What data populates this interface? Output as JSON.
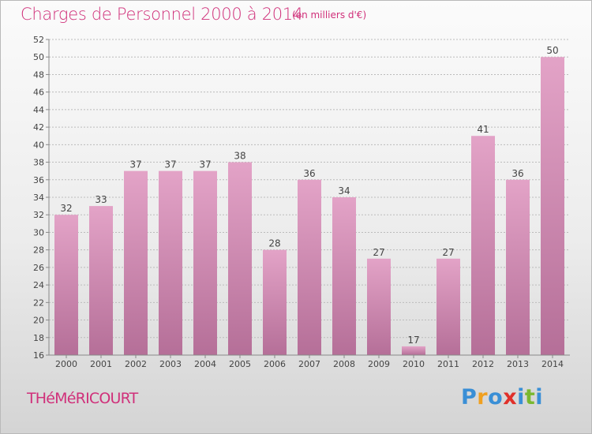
{
  "header": {
    "title": "Charges de Personnel 2000 à 2014",
    "subtitle": "(en milliers d'€)"
  },
  "footer": {
    "town": "THéMéRICOURT",
    "logo_letters": [
      {
        "char": "P",
        "color": "#3a8fd6"
      },
      {
        "char": "r",
        "color": "#f0a020"
      },
      {
        "char": "o",
        "color": "#3a8fd6"
      },
      {
        "char": "x",
        "color": "#e0302a"
      },
      {
        "char": "i",
        "color": "#3a8fd6"
      },
      {
        "char": "t",
        "color": "#7ab830"
      },
      {
        "char": "i",
        "color": "#3a8fd6"
      }
    ]
  },
  "colors": {
    "title": "#d0307a",
    "bar_top": "#e3a3c7",
    "bar_bottom": "#b56f98",
    "gridline": "#bbbbbb",
    "axis": "#888888",
    "text": "#444444"
  },
  "chart_data": {
    "type": "bar",
    "title": "Charges de Personnel 2000 à 2014",
    "subtitle": "(en milliers d'€)",
    "categories": [
      "2000",
      "2001",
      "2002",
      "2003",
      "2004",
      "2005",
      "2006",
      "2007",
      "2008",
      "2009",
      "2010",
      "2011",
      "2012",
      "2013",
      "2014"
    ],
    "values": [
      32,
      33,
      37,
      37,
      37,
      38,
      28,
      36,
      34,
      27,
      17,
      27,
      41,
      36,
      50
    ],
    "xlabel": "",
    "ylabel": "",
    "ylim": [
      16,
      52
    ],
    "yticks": [
      16,
      18,
      20,
      22,
      24,
      26,
      28,
      30,
      32,
      34,
      36,
      38,
      40,
      42,
      44,
      46,
      48,
      50,
      52
    ],
    "grid": true,
    "legend": "none"
  }
}
